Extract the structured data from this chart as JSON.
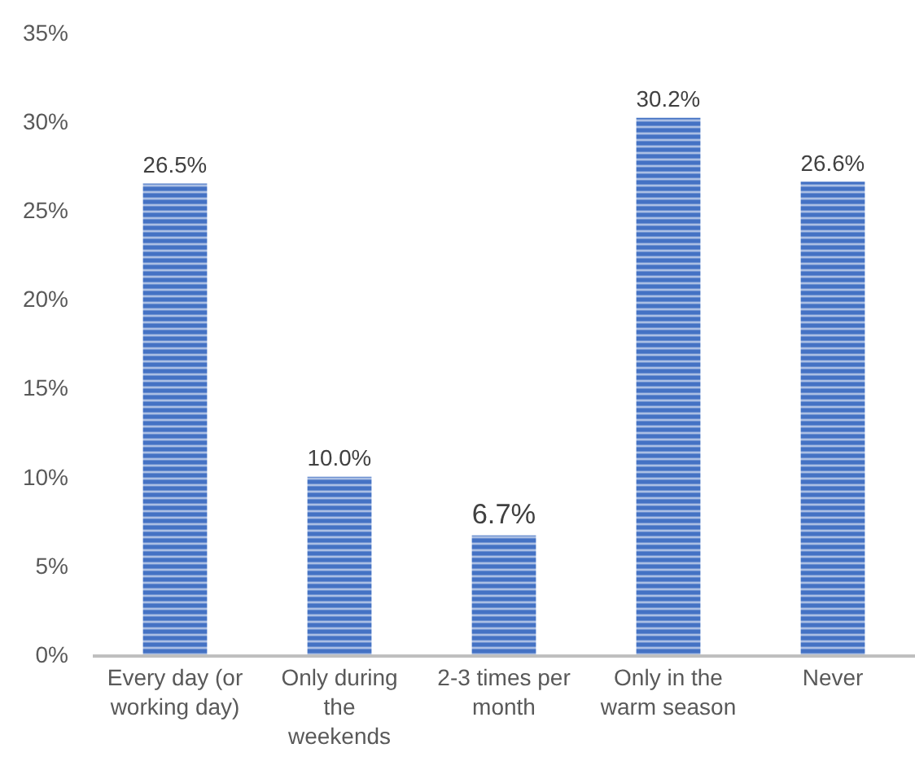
{
  "chart_data": {
    "type": "bar",
    "categories": [
      "Every day (or\nworking day)",
      "Only during\nthe\nweekends",
      "2-3 times per\nmonth",
      "Only in the\nwarm season",
      "Never"
    ],
    "values": [
      26.5,
      10.0,
      6.7,
      30.2,
      26.6
    ],
    "value_labels": [
      "26.5%",
      "10.0%",
      "6.7%",
      "30.2%",
      "26.6%"
    ],
    "color": "#4472c4",
    "ylim": [
      0,
      35
    ],
    "yticks": [
      {
        "value": 0,
        "label": "0%"
      },
      {
        "value": 5,
        "label": "5%"
      },
      {
        "value": 10,
        "label": "10%"
      },
      {
        "value": 15,
        "label": "15%"
      },
      {
        "value": 20,
        "label": "20%"
      },
      {
        "value": 25,
        "label": "25%"
      },
      {
        "value": 30,
        "label": "30%"
      },
      {
        "value": 35,
        "label": "35%"
      }
    ]
  }
}
